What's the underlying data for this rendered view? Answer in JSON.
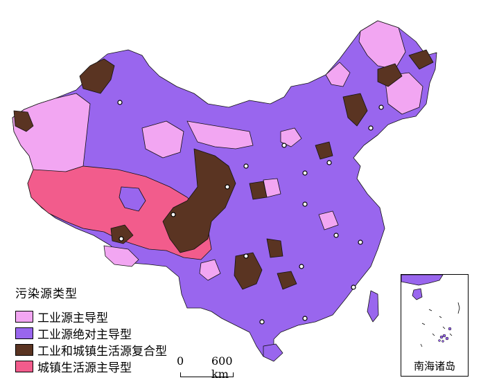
{
  "legend": {
    "title": "污染源类型",
    "items": [
      {
        "label": "工业源主导型",
        "color": "#f2a6f2"
      },
      {
        "label": "工业源绝对主导型",
        "color": "#9966ee"
      },
      {
        "label": "工业和城镇生活源复合型",
        "color": "#5a3422"
      },
      {
        "label": "城镇生活源主导型",
        "color": "#f25c8c"
      }
    ]
  },
  "scale_bar": {
    "zero": "0",
    "distance": "600 km"
  },
  "inset": {
    "label": "南海诸岛"
  }
}
